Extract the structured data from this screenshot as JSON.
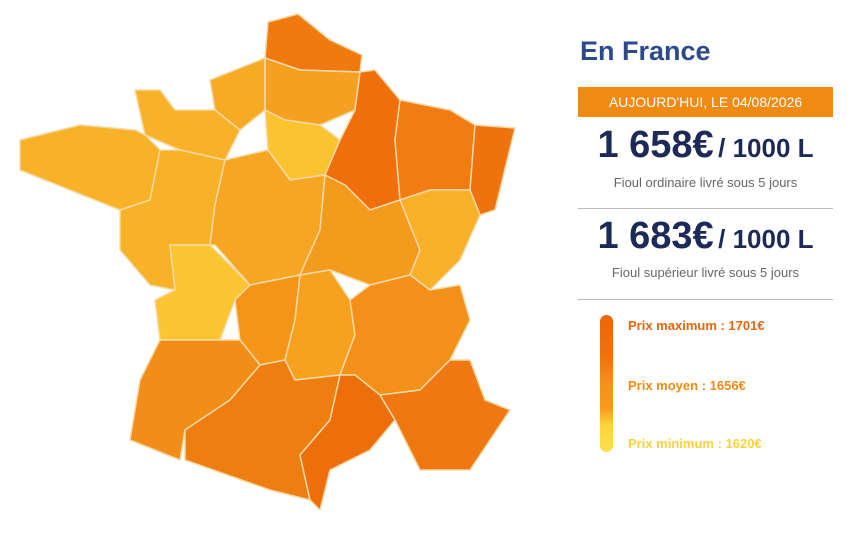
{
  "title": "En France",
  "date_badge": "AUJOURD'HUI, LE 04/08/2026",
  "prices": [
    {
      "amount": "1 658€",
      "unit": "/ 1000 L",
      "description": "Fioul ordinaire livré sous 5 jours"
    },
    {
      "amount": "1 683€",
      "unit": "/ 1000 L",
      "description": "Fioul supérieur livré sous 5 jours"
    }
  ],
  "legend": [
    {
      "label": "Prix maximum : 1701€"
    },
    {
      "label": "Prix moyen : 1656€"
    },
    {
      "label": "Prix minimum : 1620€"
    }
  ]
}
